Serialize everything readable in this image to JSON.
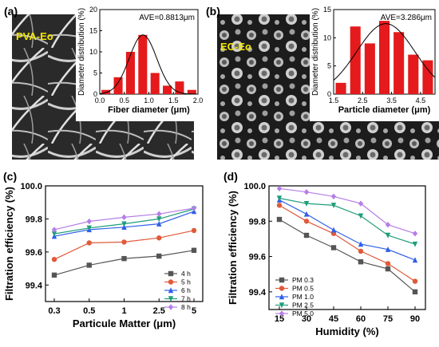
{
  "colors": {
    "bar": "#e41a1c",
    "fit_curve": "#000000",
    "pva_label": "#f2e600",
    "ec_label": "#f2e600",
    "gridline": "#9a9a9a"
  },
  "panels": {
    "a": {
      "letter": "(a)",
      "sample_label": "PVA-Eo"
    },
    "b": {
      "letter": "(b)",
      "sample_label": "EC-Eo"
    },
    "c": {
      "letter": "(c)"
    },
    "d": {
      "letter": "(d)"
    }
  },
  "chart_data": [
    {
      "id": "a",
      "type": "bar",
      "bin_edges": [
        0.0,
        0.25,
        0.5,
        0.75,
        1.0,
        1.25,
        1.5,
        1.75,
        2.0
      ],
      "values": [
        1,
        4,
        10,
        14,
        5,
        2,
        3,
        1
      ],
      "fit": "gaussian",
      "fit_mean": 0.88,
      "fit_sd": 0.28,
      "fit_peak": 14,
      "annotation": "AVE=0.8813μm",
      "xlabel": "Fiber diameter (μm)",
      "ylabel": "Diameter distribution (%)",
      "xlim": [
        0,
        2
      ],
      "ylim": [
        0,
        20
      ],
      "xticks": [
        0.0,
        0.5,
        1.0,
        1.5,
        2.0
      ],
      "xtick_labels": [
        "0.0",
        "0.5",
        "1.0",
        "1.5",
        "2.0"
      ],
      "yticks": [
        0,
        5,
        10,
        15,
        20
      ],
      "ytick_labels": [
        "0",
        "5",
        "10",
        "15",
        "20"
      ]
    },
    {
      "id": "b",
      "type": "bar",
      "bin_edges": [
        1.5,
        2.0,
        2.5,
        3.0,
        3.5,
        4.0,
        4.5,
        5.0
      ],
      "values": [
        2,
        12,
        9,
        13,
        11,
        7,
        6
      ],
      "fit": "gaussian",
      "fit_mean": 3.3,
      "fit_sd": 1.0,
      "fit_peak": 12.5,
      "annotation": "AVE=3.286μm",
      "xlabel": "Particle diameter (μm)",
      "ylabel": "Diameter distribution (%)",
      "xlim": [
        1.5,
        5.0
      ],
      "ylim": [
        0,
        15
      ],
      "xticks": [
        1.5,
        2.5,
        3.5,
        4.5
      ],
      "xtick_labels": [
        "1.5",
        "2.5",
        "3.5",
        "4.5"
      ],
      "yticks": [
        0,
        5,
        10,
        15
      ],
      "ytick_labels": [
        "0",
        "5",
        "10",
        "15"
      ]
    },
    {
      "id": "c",
      "type": "line",
      "categories": [
        "0.3",
        "0.5",
        "1",
        "2.5",
        "5"
      ],
      "xlabel": "Particule Matter (μm)",
      "ylabel": "Filtration efficiency (%)",
      "ylim": [
        99.3,
        100.0
      ],
      "yticks": [
        99.4,
        99.6,
        99.8,
        100.0
      ],
      "ytick_labels": [
        "99.4",
        "99.6",
        "99.8",
        "100.0"
      ],
      "legend": "bottom-right",
      "series": [
        {
          "name": "4 h",
          "color": "#555555",
          "marker": "square",
          "values": [
            99.46,
            99.52,
            99.56,
            99.575,
            99.61
          ]
        },
        {
          "name": "5 h",
          "color": "#e05a3a",
          "marker": "circle",
          "values": [
            99.555,
            99.655,
            99.66,
            99.685,
            99.73
          ]
        },
        {
          "name": "6 h",
          "color": "#2f5fe8",
          "marker": "triangle",
          "values": [
            99.695,
            99.735,
            99.75,
            99.77,
            99.845
          ]
        },
        {
          "name": "7 h",
          "color": "#1e9e78",
          "marker": "triangle-down",
          "values": [
            99.71,
            99.745,
            99.77,
            99.8,
            99.86
          ]
        },
        {
          "name": "8 h",
          "color": "#b57ee8",
          "marker": "diamond",
          "values": [
            99.735,
            99.785,
            99.81,
            99.83,
            99.865
          ]
        }
      ]
    },
    {
      "id": "d",
      "type": "line",
      "categories": [
        "15",
        "30",
        "45",
        "60",
        "75",
        "90"
      ],
      "xlabel": "Humidity (%)",
      "ylabel": "Filtration efficiency (%)",
      "ylim": [
        99.3,
        100.0
      ],
      "yticks": [
        99.4,
        99.6,
        99.8,
        100.0
      ],
      "ytick_labels": [
        "99.4",
        "99.6",
        "99.8",
        "100.0"
      ],
      "legend": "bottom-left",
      "series": [
        {
          "name": "PM 0.3",
          "color": "#555555",
          "marker": "square",
          "values": [
            99.81,
            99.72,
            99.65,
            99.57,
            99.53,
            99.4
          ]
        },
        {
          "name": "PM 0.5",
          "color": "#e05a3a",
          "marker": "circle",
          "values": [
            99.89,
            99.8,
            99.73,
            99.63,
            99.56,
            99.46
          ]
        },
        {
          "name": "PM 1.0",
          "color": "#2f5fe8",
          "marker": "triangle",
          "values": [
            99.92,
            99.84,
            99.75,
            99.67,
            99.64,
            99.58
          ]
        },
        {
          "name": "PM 2.5",
          "color": "#1e9e78",
          "marker": "triangle-down",
          "values": [
            99.93,
            99.9,
            99.89,
            99.83,
            99.72,
            99.67
          ]
        },
        {
          "name": "PM 5.0",
          "color": "#b57ee8",
          "marker": "diamond",
          "values": [
            99.985,
            99.965,
            99.94,
            99.9,
            99.78,
            99.73
          ]
        }
      ]
    }
  ]
}
